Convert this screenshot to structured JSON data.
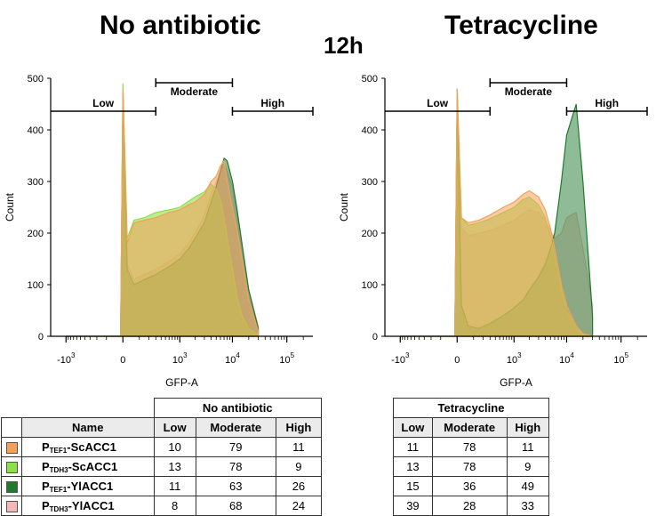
{
  "titles": {
    "left": "No antibiotic",
    "center": "12h",
    "right": "Tetracycline"
  },
  "colors": {
    "TEF1_ScACC1": "#f5a05a",
    "TDH3_ScACC1": "#8ee04a",
    "TEF1_YlACC1": "#1f7a2e",
    "TDH3_YlACC1": "#f2b8b8"
  },
  "chart_data": [
    {
      "type": "area",
      "title": "No antibiotic",
      "xlabel": "GFP-A",
      "ylabel": "Count",
      "xscale": "biexponential",
      "xticks": [
        "-10^3",
        "0",
        "10^3",
        "10^4",
        "10^5"
      ],
      "yticks": [
        0,
        100,
        200,
        300,
        400,
        500
      ],
      "ylim": [
        0,
        500
      ],
      "gates": {
        "low": "Low",
        "moderate": "Moderate",
        "high": "High"
      },
      "series": [
        {
          "name": "PTEF1-ScACC1",
          "x": [
            -1000,
            -10,
            0,
            20,
            60,
            150,
            300,
            600,
            1000,
            1500,
            2000,
            3000,
            4000,
            5000,
            6000,
            7000,
            8000,
            10000,
            12000,
            15000,
            20000,
            30000
          ],
          "y": [
            0,
            0,
            480,
            180,
            220,
            225,
            230,
            240,
            245,
            255,
            260,
            275,
            300,
            310,
            330,
            340,
            300,
            250,
            210,
            150,
            70,
            10
          ]
        },
        {
          "name": "PTDH3-ScACC1",
          "x": [
            -1000,
            -10,
            0,
            20,
            60,
            150,
            300,
            600,
            1000,
            1500,
            2000,
            3000,
            4000,
            5000,
            6000,
            7000,
            8000,
            10000,
            12000,
            15000,
            20000,
            30000
          ],
          "y": [
            0,
            0,
            490,
            190,
            225,
            230,
            240,
            245,
            250,
            262,
            270,
            280,
            295,
            285,
            265,
            230,
            190,
            130,
            80,
            40,
            15,
            3
          ]
        },
        {
          "name": "PTEF1-YlACC1",
          "x": [
            -1000,
            -10,
            0,
            20,
            60,
            150,
            300,
            600,
            1000,
            1500,
            2000,
            3000,
            4000,
            5000,
            6000,
            7000,
            8000,
            10000,
            12000,
            15000,
            20000,
            30000
          ],
          "y": [
            0,
            0,
            470,
            130,
            100,
            110,
            120,
            135,
            150,
            170,
            190,
            220,
            260,
            290,
            320,
            345,
            340,
            300,
            250,
            180,
            90,
            15
          ]
        },
        {
          "name": "PTDH3-YlACC1",
          "x": [
            -1000,
            -10,
            0,
            20,
            60,
            150,
            300,
            600,
            1000,
            1500,
            2000,
            3000,
            4000,
            5000,
            6000,
            7000,
            8000,
            10000,
            12000,
            15000,
            20000,
            30000
          ],
          "y": [
            0,
            0,
            470,
            140,
            110,
            120,
            130,
            145,
            160,
            180,
            200,
            235,
            275,
            300,
            320,
            335,
            320,
            290,
            240,
            170,
            90,
            20
          ]
        }
      ]
    },
    {
      "type": "area",
      "title": "Tetracycline",
      "xlabel": "GFP-A",
      "ylabel": "Count",
      "xscale": "biexponential",
      "xticks": [
        "-10^3",
        "0",
        "10^3",
        "10^4",
        "10^5"
      ],
      "yticks": [
        0,
        100,
        200,
        300,
        400,
        500
      ],
      "ylim": [
        0,
        500
      ],
      "gates": {
        "low": "Low",
        "moderate": "Moderate",
        "high": "High"
      },
      "series": [
        {
          "name": "PTEF1-ScACC1",
          "x": [
            -1000,
            -10,
            0,
            20,
            60,
            150,
            300,
            600,
            1000,
            1500,
            2000,
            3000,
            4000,
            5000,
            6000,
            8000,
            10000,
            15000,
            20000,
            30000
          ],
          "y": [
            0,
            0,
            480,
            230,
            220,
            225,
            235,
            250,
            260,
            275,
            282,
            270,
            245,
            210,
            170,
            100,
            60,
            20,
            5,
            0
          ]
        },
        {
          "name": "PTDH3-ScACC1",
          "x": [
            -1000,
            -10,
            0,
            20,
            60,
            150,
            300,
            600,
            1000,
            1500,
            2000,
            3000,
            4000,
            5000,
            6000,
            8000,
            10000,
            15000,
            20000,
            30000
          ],
          "y": [
            0,
            0,
            480,
            230,
            215,
            220,
            228,
            240,
            250,
            265,
            270,
            255,
            230,
            195,
            155,
            90,
            50,
            15,
            3,
            0
          ]
        },
        {
          "name": "PTEF1-YlACC1",
          "x": [
            -1000,
            -10,
            0,
            20,
            60,
            150,
            300,
            600,
            1000,
            1500,
            2000,
            3000,
            4000,
            5000,
            6000,
            8000,
            10000,
            15000,
            20000,
            30000
          ],
          "y": [
            0,
            0,
            460,
            60,
            20,
            15,
            25,
            40,
            55,
            70,
            90,
            115,
            140,
            170,
            200,
            300,
            390,
            450,
            300,
            40
          ]
        },
        {
          "name": "PTDH3-YlACC1",
          "x": [
            -1000,
            -10,
            0,
            20,
            60,
            150,
            300,
            600,
            1000,
            1500,
            2000,
            3000,
            4000,
            5000,
            6000,
            8000,
            10000,
            15000,
            20000,
            30000
          ],
          "y": [
            0,
            0,
            470,
            210,
            195,
            200,
            205,
            215,
            225,
            238,
            245,
            240,
            225,
            205,
            190,
            200,
            230,
            240,
            170,
            60
          ]
        }
      ]
    },
    {
      "type": "table",
      "columns": [
        "Name",
        "Low",
        "Moderate",
        "High"
      ],
      "group_header": "No antibiotic",
      "rows": [
        {
          "name_main": "P",
          "name_sub": "TEF1",
          "name_rest": "-ScACC1",
          "color_key": "TEF1_ScACC1",
          "values": [
            "10",
            "79",
            "11"
          ]
        },
        {
          "name_main": "P",
          "name_sub": "TDH3",
          "name_rest": "-ScACC1",
          "color_key": "TDH3_ScACC1",
          "values": [
            "13",
            "78",
            "9"
          ]
        },
        {
          "name_main": "P",
          "name_sub": "TEF1",
          "name_rest": "-YlACC1",
          "color_key": "TEF1_YlACC1",
          "values": [
            "11",
            "63",
            "26"
          ]
        },
        {
          "name_main": "P",
          "name_sub": "TDH3",
          "name_rest": "-YlACC1",
          "color_key": "TDH3_YlACC1",
          "values": [
            "8",
            "68",
            "24"
          ]
        }
      ]
    },
    {
      "type": "table",
      "columns": [
        "Low",
        "Moderate",
        "High"
      ],
      "group_header": "Tetracycline",
      "rows": [
        {
          "values": [
            "11",
            "78",
            "11"
          ]
        },
        {
          "values": [
            "13",
            "78",
            "9"
          ]
        },
        {
          "values": [
            "15",
            "36",
            "49"
          ]
        },
        {
          "values": [
            "39",
            "28",
            "33"
          ]
        }
      ]
    }
  ]
}
